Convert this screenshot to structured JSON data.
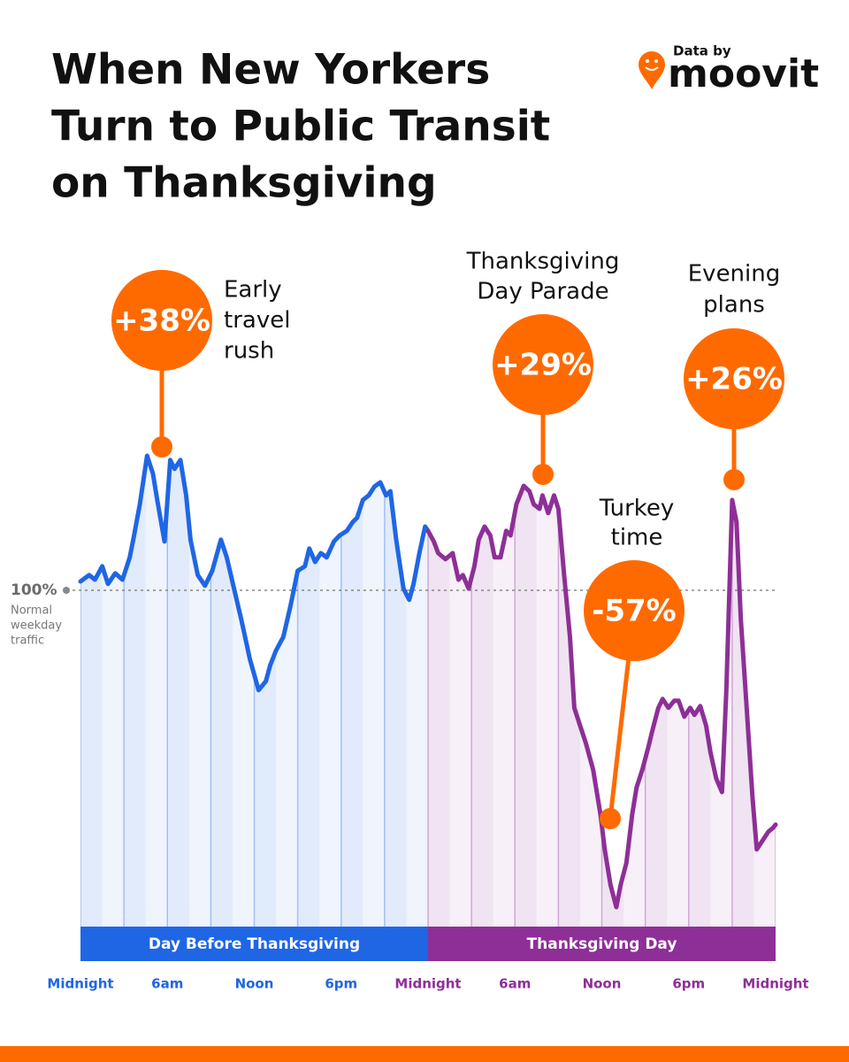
{
  "chart_data": {
    "type": "line",
    "title": [
      "When New Yorkers",
      "Turn to Public Transit",
      "on Thanksgiving"
    ],
    "brand": {
      "prefix": "Data by",
      "name": "moovit"
    },
    "xlim": [
      0,
      48
    ],
    "ylim": [
      5,
      145
    ],
    "xticks": [
      {
        "value": 0,
        "label": "Midnight"
      },
      {
        "value": 6,
        "label": "6am"
      },
      {
        "value": 12,
        "label": "Noon"
      },
      {
        "value": 18,
        "label": "6pm"
      },
      {
        "value": 24,
        "label": "Midnight"
      },
      {
        "value": 30,
        "label": "6am"
      },
      {
        "value": 36,
        "label": "Noon"
      },
      {
        "value": 42,
        "label": "6pm"
      },
      {
        "value": 48,
        "label": "Midnight"
      }
    ],
    "xgrid": [
      0,
      3,
      6,
      9,
      12,
      15,
      18,
      21,
      24,
      27,
      30,
      33,
      36,
      39,
      42,
      45,
      48
    ],
    "yticks": [
      {
        "value": 100,
        "label": "100%"
      }
    ],
    "ytick_note": [
      "Normal",
      "weekday",
      "traffic"
    ],
    "series": [
      {
        "name": "Day Before Thanksgiving",
        "color": "#1f66e5",
        "x": [
          0,
          0.6,
          1.0,
          1.5,
          1.9,
          2.4,
          2.9,
          3.4,
          3.7,
          4.1,
          4.6,
          5.0,
          5.3,
          5.8,
          6.2,
          6.5,
          6.9,
          7.3,
          7.6,
          8.1,
          8.6,
          9.1,
          9.7,
          10.1,
          10.6,
          11.1,
          11.7,
          12.3,
          12.8,
          13.1,
          13.5,
          14.0,
          14.5,
          15.0,
          15.5,
          15.8,
          16.2,
          16.6,
          17.0,
          17.5,
          17.9,
          18.4,
          18.8,
          19.1,
          19.5,
          19.9,
          20.3,
          20.7,
          21.1,
          21.4,
          21.8,
          22.3,
          22.7,
          23.0,
          23.4,
          23.8,
          24.0
        ],
        "values": [
          102.5,
          104.3,
          103,
          106.8,
          101.8,
          104.8,
          103,
          109.3,
          115.5,
          124.3,
          138,
          133,
          125.5,
          113.8,
          136.8,
          134.3,
          136.8,
          126.8,
          114.3,
          104.3,
          101.3,
          105.5,
          114.3,
          109.3,
          100.5,
          91.8,
          80.5,
          71.8,
          74.3,
          78.8,
          83,
          86.8,
          95.5,
          105.5,
          106.8,
          111.8,
          108,
          110.5,
          109.3,
          113.8,
          115.5,
          116.8,
          119.3,
          120.5,
          125.5,
          126.8,
          129.3,
          130.5,
          126.8,
          128,
          114.3,
          100.5,
          97.3,
          101.8,
          110.5,
          118,
          116.8
        ]
      },
      {
        "name": "Thanksgiving Day",
        "color": "#8e2f97",
        "x": [
          24.0,
          24.4,
          24.7,
          25.2,
          25.7,
          26.1,
          26.4,
          26.8,
          27.2,
          27.5,
          27.9,
          28.3,
          28.6,
          29.0,
          29.4,
          29.7,
          30.1,
          30.6,
          31.0,
          31.3,
          31.7,
          31.9,
          32.3,
          32.7,
          33.0,
          33.4,
          33.8,
          34.1,
          34.5,
          34.9,
          35.4,
          35.9,
          36.2,
          36.6,
          37.0,
          37.3,
          37.7,
          38.1,
          38.4,
          38.8,
          39.2,
          39.5,
          39.9,
          40.2,
          40.6,
          41.0,
          41.3,
          41.7,
          42.1,
          42.4,
          42.8,
          43.2,
          43.5,
          43.9,
          44.3,
          44.6,
          45.0,
          45.3,
          45.6,
          46.0,
          46.4,
          46.7,
          47.1,
          47.5,
          47.8,
          48.0
        ],
        "values": [
          116.8,
          113.8,
          110.5,
          108.8,
          110.5,
          103,
          104.3,
          100.5,
          106.8,
          114.3,
          118,
          115.5,
          109.3,
          109.3,
          116.8,
          115.5,
          124.3,
          129.5,
          128,
          124.3,
          123,
          126.8,
          121.8,
          126.8,
          123,
          104.3,
          86.8,
          66.8,
          61.8,
          56.8,
          49.3,
          36.8,
          26.8,
          16.8,
          10.5,
          16.8,
          23,
          36.8,
          44.3,
          49.3,
          55.5,
          60.5,
          66.8,
          69.3,
          66.8,
          68.8,
          68.8,
          64.3,
          66.8,
          64.8,
          67.3,
          61.8,
          54.3,
          46.8,
          43,
          71.8,
          125.5,
          119.3,
          91.8,
          66.8,
          41.8,
          26.8,
          29.3,
          31.8,
          32.8,
          33.8
        ]
      }
    ],
    "annotations": [
      {
        "label": "+38%",
        "text": [
          "Early",
          "travel",
          "rush"
        ]
      },
      {
        "label": "+29%",
        "text": [
          "Thanksgiving",
          "Day Parade"
        ]
      },
      {
        "label": "+26%",
        "text": [
          "Evening",
          "plans"
        ]
      },
      {
        "label": "-57%",
        "text": [
          "Turkey",
          "time"
        ]
      }
    ]
  }
}
